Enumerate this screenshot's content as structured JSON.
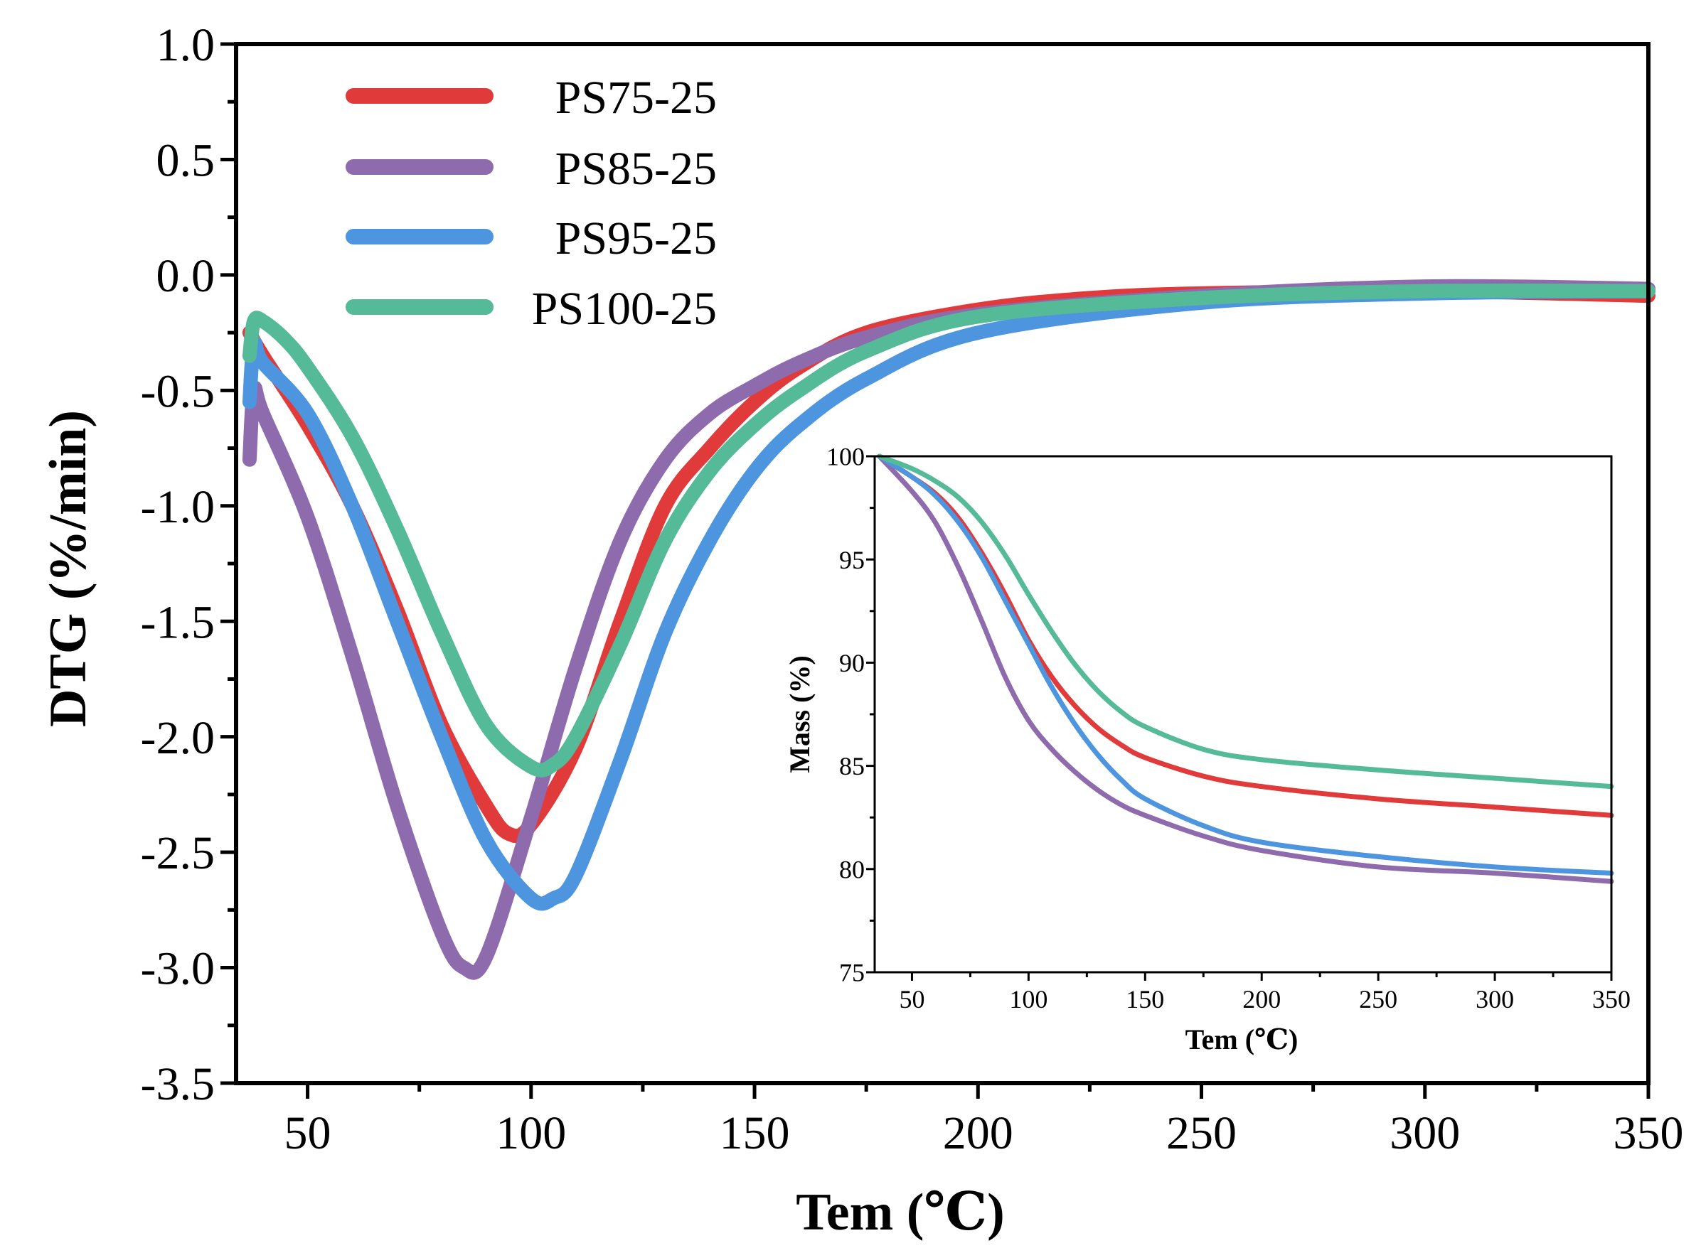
{
  "chart_data": [
    {
      "type": "line",
      "id": "main",
      "title": "",
      "xlabel": "Tem  (℃)",
      "ylabel": "DTG (%/min)",
      "xlim": [
        34,
        350
      ],
      "ylim": [
        -3.5,
        1.0
      ],
      "xticks": [
        50,
        100,
        150,
        200,
        250,
        300,
        350
      ],
      "xtick_labels": [
        "50",
        "100",
        "150",
        "200",
        "250",
        "300",
        "350"
      ],
      "yticks": [
        1.0,
        0.5,
        0.0,
        -0.5,
        -1.0,
        -1.5,
        -2.0,
        -2.5,
        -3.0,
        -3.5
      ],
      "ytick_labels": [
        "1.0",
        "0.5",
        "0.0",
        "-0.5",
        "-1.0",
        "-1.5",
        "-2.0",
        "-2.5",
        "-3.0",
        "-3.5"
      ],
      "grid": false,
      "legend": "top-left",
      "series": [
        {
          "name": "PS75-25",
          "color": "#e03a3a",
          "x": [
            37,
            40,
            50,
            60,
            70,
            80,
            90,
            95,
            100,
            110,
            120,
            130,
            140,
            150,
            160,
            175,
            200,
            225,
            250,
            300,
            350
          ],
          "y": [
            -0.25,
            -0.35,
            -0.65,
            -1.0,
            -1.45,
            -1.95,
            -2.3,
            -2.42,
            -2.38,
            -2.05,
            -1.5,
            -1.0,
            -0.75,
            -0.55,
            -0.4,
            -0.25,
            -0.15,
            -0.1,
            -0.08,
            -0.07,
            -0.09
          ]
        },
        {
          "name": "PS85-25",
          "color": "#8e6bad",
          "x": [
            37,
            38,
            40,
            50,
            60,
            70,
            80,
            85,
            90,
            100,
            110,
            120,
            130,
            140,
            150,
            160,
            175,
            200,
            250,
            300,
            350
          ],
          "y": [
            -0.8,
            -0.5,
            -0.6,
            -1.05,
            -1.65,
            -2.3,
            -2.85,
            -3.0,
            -2.95,
            -2.35,
            -1.7,
            -1.15,
            -0.8,
            -0.6,
            -0.48,
            -0.38,
            -0.27,
            -0.17,
            -0.09,
            -0.05,
            -0.06
          ]
        },
        {
          "name": "PS95-25",
          "color": "#4d95de",
          "x": [
            37,
            38,
            40,
            50,
            60,
            70,
            80,
            90,
            100,
            105,
            110,
            120,
            130,
            140,
            150,
            160,
            175,
            200,
            250,
            300,
            350
          ],
          "y": [
            -0.55,
            -0.3,
            -0.38,
            -0.6,
            -1.0,
            -1.5,
            -2.0,
            -2.45,
            -2.7,
            -2.7,
            -2.6,
            -2.1,
            -1.55,
            -1.15,
            -0.85,
            -0.65,
            -0.45,
            -0.25,
            -0.12,
            -0.08,
            -0.07
          ]
        },
        {
          "name": "PS100-25",
          "color": "#55ba98",
          "x": [
            37,
            38,
            40,
            45,
            50,
            60,
            70,
            80,
            90,
            100,
            105,
            110,
            120,
            130,
            140,
            150,
            160,
            175,
            200,
            250,
            300,
            350
          ],
          "y": [
            -0.35,
            -0.2,
            -0.2,
            -0.28,
            -0.4,
            -0.7,
            -1.1,
            -1.55,
            -1.95,
            -2.13,
            -2.12,
            -2.0,
            -1.6,
            -1.15,
            -0.85,
            -0.65,
            -0.5,
            -0.33,
            -0.18,
            -0.1,
            -0.07,
            -0.07
          ]
        }
      ]
    },
    {
      "type": "line",
      "id": "inset",
      "title": "",
      "xlabel": "Tem (℃)",
      "ylabel": "Mass (%)",
      "xlim": [
        34,
        350
      ],
      "ylim": [
        75,
        100
      ],
      "xticks": [
        50,
        100,
        150,
        200,
        250,
        300,
        350
      ],
      "xtick_labels": [
        "50",
        "100",
        "150",
        "200",
        "250",
        "300",
        "350"
      ],
      "yticks": [
        100,
        95,
        90,
        85,
        80,
        75
      ],
      "ytick_labels": [
        "100",
        "95",
        "90",
        "85",
        "80",
        "75"
      ],
      "grid": false,
      "legend": "none",
      "series": [
        {
          "name": "PS75-25",
          "color": "#e03a3a",
          "x": [
            36,
            50,
            60,
            70,
            80,
            90,
            100,
            110,
            120,
            130,
            140,
            150,
            175,
            200,
            250,
            300,
            350
          ],
          "y": [
            100,
            99.0,
            98.2,
            97.0,
            95.3,
            93.3,
            91.1,
            89.3,
            87.9,
            86.8,
            86.0,
            85.4,
            84.5,
            84.0,
            83.4,
            83.0,
            82.6
          ]
        },
        {
          "name": "PS85-25",
          "color": "#8e6bad",
          "x": [
            36,
            50,
            60,
            70,
            80,
            90,
            100,
            110,
            120,
            130,
            140,
            150,
            175,
            200,
            250,
            300,
            350
          ],
          "y": [
            100,
            98.3,
            96.8,
            94.6,
            92.0,
            89.3,
            87.2,
            85.8,
            84.7,
            83.8,
            83.1,
            82.6,
            81.6,
            80.9,
            80.1,
            79.8,
            79.4
          ]
        },
        {
          "name": "PS95-25",
          "color": "#4d95de",
          "x": [
            36,
            50,
            60,
            70,
            80,
            90,
            100,
            110,
            120,
            130,
            140,
            150,
            175,
            200,
            250,
            300,
            350
          ],
          "y": [
            100,
            99.0,
            98.1,
            96.8,
            95.1,
            93.0,
            90.9,
            88.8,
            87.0,
            85.5,
            84.3,
            83.4,
            82.1,
            81.3,
            80.6,
            80.1,
            79.8
          ]
        },
        {
          "name": "PS100-25",
          "color": "#55ba98",
          "x": [
            36,
            50,
            60,
            70,
            80,
            90,
            100,
            110,
            120,
            130,
            140,
            150,
            175,
            200,
            250,
            300,
            350
          ],
          "y": [
            100,
            99.4,
            98.8,
            98.0,
            96.8,
            95.2,
            93.3,
            91.5,
            89.9,
            88.6,
            87.6,
            86.9,
            85.8,
            85.3,
            84.8,
            84.4,
            84.0
          ]
        }
      ]
    }
  ]
}
